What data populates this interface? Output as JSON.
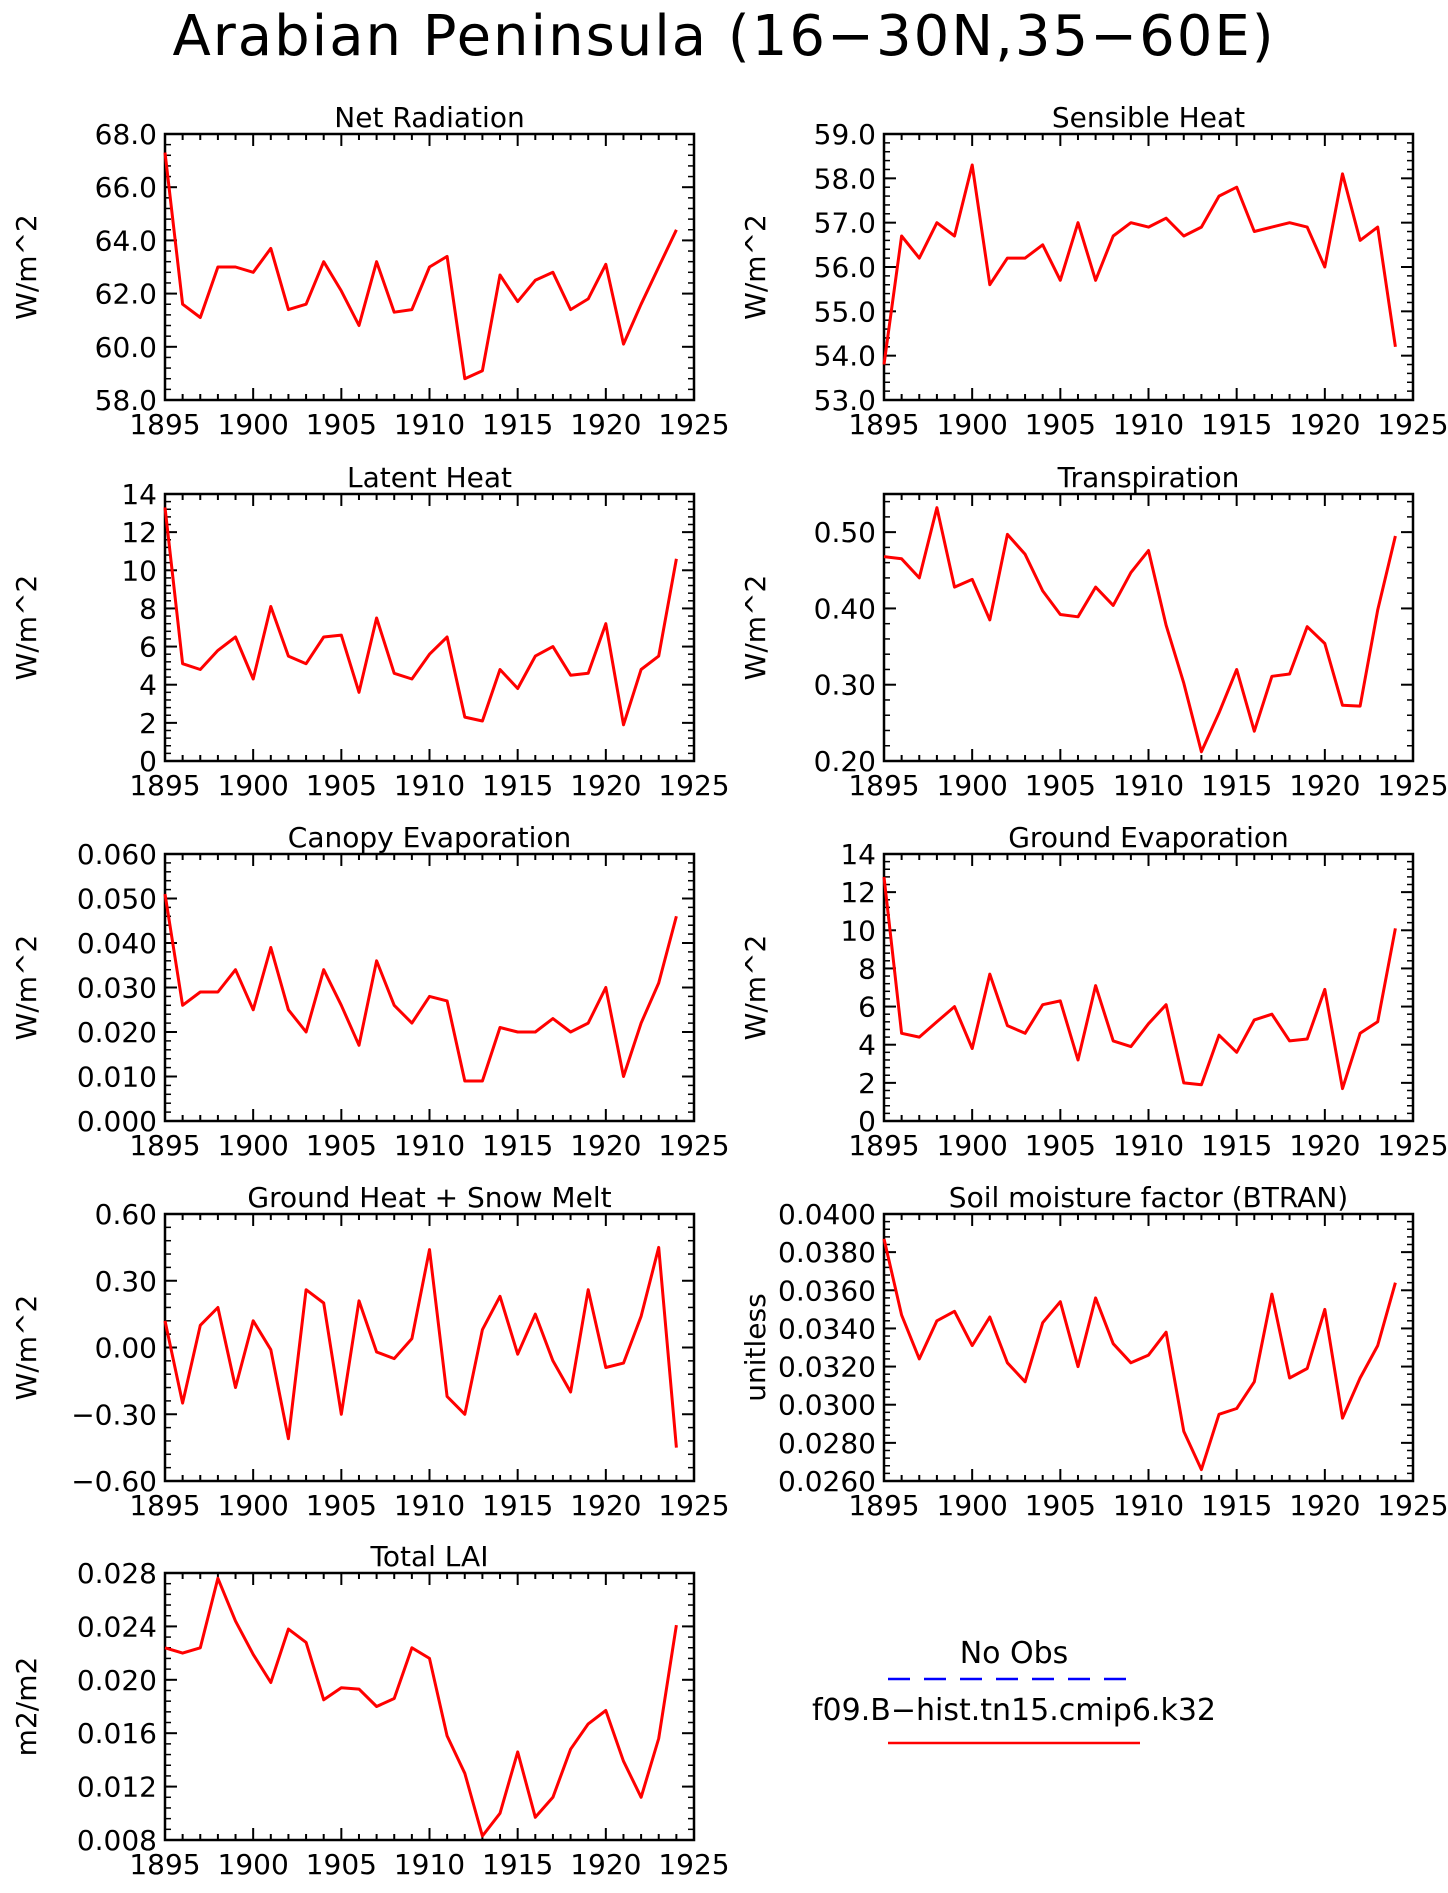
{
  "title": "Arabian Peninsula (16−30N,35−60E)",
  "colors": {
    "model": "#ff0000",
    "obs": "#0000ff",
    "axis": "#000000"
  },
  "legend": {
    "obs_label": "No Obs",
    "model_label": "f09.B−hist.tn15.cmip6.k32"
  },
  "chart_data": [
    {
      "type": "line",
      "title": "Net Radiation",
      "ylabel": "W/m^2",
      "xlabel": "",
      "xlim": [
        1895,
        1925
      ],
      "ylim": [
        58.0,
        68.0
      ],
      "xticks": [
        "1895",
        "1900",
        "1905",
        "1910",
        "1915",
        "1920",
        "1925"
      ],
      "yticks": [
        "58.0",
        "60.0",
        "62.0",
        "64.0",
        "66.0",
        "68.0"
      ],
      "x": [
        1895,
        1896,
        1897,
        1898,
        1899,
        1900,
        1901,
        1902,
        1903,
        1904,
        1905,
        1906,
        1907,
        1908,
        1909,
        1910,
        1911,
        1912,
        1913,
        1914,
        1915,
        1916,
        1917,
        1918,
        1919,
        1920,
        1921,
        1922,
        1923,
        1924
      ],
      "series": [
        {
          "values": [
            67.3,
            61.6,
            61.1,
            63.0,
            63.0,
            62.8,
            63.7,
            61.4,
            61.6,
            63.2,
            62.1,
            60.8,
            63.2,
            61.3,
            61.4,
            63.0,
            63.4,
            58.8,
            59.1,
            62.7,
            61.7,
            62.5,
            62.8,
            61.4,
            61.8,
            63.1,
            60.1,
            61.6,
            63.0,
            64.4
          ]
        }
      ]
    },
    {
      "type": "line",
      "title": "Sensible Heat",
      "ylabel": "W/m^2",
      "xlabel": "",
      "xlim": [
        1895,
        1925
      ],
      "ylim": [
        53.0,
        59.0
      ],
      "xticks": [
        "1895",
        "1900",
        "1905",
        "1910",
        "1915",
        "1920",
        "1925"
      ],
      "yticks": [
        "53.0",
        "54.0",
        "55.0",
        "56.0",
        "57.0",
        "58.0",
        "59.0"
      ],
      "x": [
        1895,
        1896,
        1897,
        1898,
        1899,
        1900,
        1901,
        1902,
        1903,
        1904,
        1905,
        1906,
        1907,
        1908,
        1909,
        1910,
        1911,
        1912,
        1913,
        1914,
        1915,
        1916,
        1917,
        1918,
        1919,
        1920,
        1921,
        1922,
        1923,
        1924
      ],
      "series": [
        {
          "values": [
            53.8,
            56.7,
            56.2,
            57.0,
            56.7,
            58.3,
            55.6,
            56.2,
            56.2,
            56.5,
            55.7,
            57.0,
            55.7,
            56.7,
            57.0,
            56.9,
            57.1,
            56.7,
            56.9,
            57.6,
            57.8,
            56.8,
            56.9,
            57.0,
            56.9,
            56.0,
            58.1,
            56.6,
            56.9,
            54.2
          ]
        }
      ]
    },
    {
      "type": "line",
      "title": "Latent Heat",
      "ylabel": "W/m^2",
      "xlabel": "",
      "xlim": [
        1895,
        1925
      ],
      "ylim": [
        0,
        14
      ],
      "xticks": [
        "1895",
        "1900",
        "1905",
        "1910",
        "1915",
        "1920",
        "1925"
      ],
      "yticks": [
        "0",
        "2",
        "4",
        "6",
        "8",
        "10",
        "12",
        "14"
      ],
      "x": [
        1895,
        1896,
        1897,
        1898,
        1899,
        1900,
        1901,
        1902,
        1903,
        1904,
        1905,
        1906,
        1907,
        1908,
        1909,
        1910,
        1911,
        1912,
        1913,
        1914,
        1915,
        1916,
        1917,
        1918,
        1919,
        1920,
        1921,
        1922,
        1923,
        1924
      ],
      "series": [
        {
          "values": [
            13.3,
            5.1,
            4.8,
            5.8,
            6.5,
            4.3,
            8.1,
            5.5,
            5.1,
            6.5,
            6.6,
            3.6,
            7.5,
            4.6,
            4.3,
            5.6,
            6.5,
            2.3,
            2.1,
            4.8,
            3.8,
            5.5,
            6.0,
            4.5,
            4.6,
            7.2,
            1.9,
            4.8,
            5.5,
            10.6
          ]
        }
      ]
    },
    {
      "type": "line",
      "title": "Transpiration",
      "ylabel": "W/m^2",
      "xlabel": "",
      "xlim": [
        1895,
        1925
      ],
      "ylim": [
        0.2,
        0.55
      ],
      "xticks": [
        "1895",
        "1900",
        "1905",
        "1910",
        "1915",
        "1920",
        "1925"
      ],
      "yticks": [
        "0.20",
        "0.30",
        "0.40",
        "0.50"
      ],
      "x": [
        1895,
        1896,
        1897,
        1898,
        1899,
        1900,
        1901,
        1902,
        1903,
        1904,
        1905,
        1906,
        1907,
        1908,
        1909,
        1910,
        1911,
        1912,
        1913,
        1914,
        1915,
        1916,
        1917,
        1918,
        1919,
        1920,
        1921,
        1922,
        1923,
        1924
      ],
      "series": [
        {
          "values": [
            0.468,
            0.465,
            0.44,
            0.532,
            0.428,
            0.438,
            0.385,
            0.497,
            0.471,
            0.423,
            0.392,
            0.389,
            0.428,
            0.404,
            0.447,
            0.476,
            0.378,
            0.302,
            0.212,
            0.263,
            0.32,
            0.239,
            0.311,
            0.314,
            0.376,
            0.354,
            0.273,
            0.272,
            0.398,
            0.495
          ]
        }
      ]
    },
    {
      "type": "line",
      "title": "Canopy Evaporation",
      "ylabel": "W/m^2",
      "xlabel": "",
      "xlim": [
        1895,
        1925
      ],
      "ylim": [
        0.0,
        0.06
      ],
      "xticks": [
        "1895",
        "1900",
        "1905",
        "1910",
        "1915",
        "1920",
        "1925"
      ],
      "yticks": [
        "0.000",
        "0.010",
        "0.020",
        "0.030",
        "0.040",
        "0.050",
        "0.060"
      ],
      "x": [
        1895,
        1896,
        1897,
        1898,
        1899,
        1900,
        1901,
        1902,
        1903,
        1904,
        1905,
        1906,
        1907,
        1908,
        1909,
        1910,
        1911,
        1912,
        1913,
        1914,
        1915,
        1916,
        1917,
        1918,
        1919,
        1920,
        1921,
        1922,
        1923,
        1924
      ],
      "series": [
        {
          "values": [
            0.051,
            0.026,
            0.029,
            0.029,
            0.034,
            0.025,
            0.039,
            0.025,
            0.02,
            0.034,
            0.026,
            0.017,
            0.036,
            0.026,
            0.022,
            0.028,
            0.027,
            0.009,
            0.009,
            0.021,
            0.02,
            0.02,
            0.023,
            0.02,
            0.022,
            0.03,
            0.01,
            0.022,
            0.031,
            0.046
          ]
        }
      ]
    },
    {
      "type": "line",
      "title": "Ground Evaporation",
      "ylabel": "W/m^2",
      "xlabel": "",
      "xlim": [
        1895,
        1925
      ],
      "ylim": [
        0,
        14
      ],
      "xticks": [
        "1895",
        "1900",
        "1905",
        "1910",
        "1915",
        "1920",
        "1925"
      ],
      "yticks": [
        "0",
        "2",
        "4",
        "6",
        "8",
        "10",
        "12",
        "14"
      ],
      "x": [
        1895,
        1896,
        1897,
        1898,
        1899,
        1900,
        1901,
        1902,
        1903,
        1904,
        1905,
        1906,
        1907,
        1908,
        1909,
        1910,
        1911,
        1912,
        1913,
        1914,
        1915,
        1916,
        1917,
        1918,
        1919,
        1920,
        1921,
        1922,
        1923,
        1924
      ],
      "series": [
        {
          "values": [
            12.8,
            4.6,
            4.4,
            5.2,
            6.0,
            3.8,
            7.7,
            5.0,
            4.6,
            6.1,
            6.3,
            3.2,
            7.1,
            4.2,
            3.9,
            5.1,
            6.1,
            2.0,
            1.9,
            4.5,
            3.6,
            5.3,
            5.6,
            4.2,
            4.3,
            6.9,
            1.7,
            4.6,
            5.2,
            10.1
          ]
        }
      ]
    },
    {
      "type": "line",
      "title": "Ground Heat + Snow Melt",
      "ylabel": "W/m^2",
      "xlabel": "",
      "xlim": [
        1895,
        1925
      ],
      "ylim": [
        -0.6,
        0.6
      ],
      "xticks": [
        "1895",
        "1900",
        "1905",
        "1910",
        "1915",
        "1920",
        "1925"
      ],
      "yticks": [
        "−0.60",
        "−0.30",
        "0.00",
        "0.30",
        "0.60"
      ],
      "x": [
        1895,
        1896,
        1897,
        1898,
        1899,
        1900,
        1901,
        1902,
        1903,
        1904,
        1905,
        1906,
        1907,
        1908,
        1909,
        1910,
        1911,
        1912,
        1913,
        1914,
        1915,
        1916,
        1917,
        1918,
        1919,
        1920,
        1921,
        1922,
        1923,
        1924
      ],
      "series": [
        {
          "values": [
            0.12,
            -0.25,
            0.1,
            0.18,
            -0.18,
            0.12,
            -0.01,
            -0.41,
            0.26,
            0.2,
            -0.3,
            0.21,
            -0.02,
            -0.05,
            0.04,
            0.44,
            -0.22,
            -0.3,
            0.08,
            0.23,
            -0.03,
            0.15,
            -0.06,
            -0.2,
            0.26,
            -0.09,
            -0.07,
            0.14,
            0.45,
            -0.45
          ]
        }
      ]
    },
    {
      "type": "line",
      "title": "Soil moisture factor (BTRAN)",
      "ylabel": "unitless",
      "xlabel": "",
      "xlim": [
        1895,
        1925
      ],
      "ylim": [
        0.026,
        0.04
      ],
      "xticks": [
        "1895",
        "1900",
        "1905",
        "1910",
        "1915",
        "1920",
        "1925"
      ],
      "yticks": [
        "0.0260",
        "0.0280",
        "0.0300",
        "0.0320",
        "0.0340",
        "0.0360",
        "0.0380",
        "0.0400"
      ],
      "x": [
        1895,
        1896,
        1897,
        1898,
        1899,
        1900,
        1901,
        1902,
        1903,
        1904,
        1905,
        1906,
        1907,
        1908,
        1909,
        1910,
        1911,
        1912,
        1913,
        1914,
        1915,
        1916,
        1917,
        1918,
        1919,
        1920,
        1921,
        1922,
        1923,
        1924
      ],
      "series": [
        {
          "values": [
            0.0387,
            0.0347,
            0.0324,
            0.0344,
            0.0349,
            0.0331,
            0.0346,
            0.0322,
            0.0312,
            0.0343,
            0.0354,
            0.032,
            0.0356,
            0.0332,
            0.0322,
            0.0326,
            0.0338,
            0.0286,
            0.0266,
            0.0295,
            0.0298,
            0.0312,
            0.0358,
            0.0314,
            0.0319,
            0.035,
            0.0293,
            0.0314,
            0.0331,
            0.0364
          ]
        }
      ]
    },
    {
      "type": "line",
      "title": "Total LAI",
      "ylabel": "m2/m2",
      "xlabel": "",
      "xlim": [
        1895,
        1925
      ],
      "ylim": [
        0.008,
        0.028
      ],
      "xticks": [
        "1895",
        "1900",
        "1905",
        "1910",
        "1915",
        "1920",
        "1925"
      ],
      "yticks": [
        "0.008",
        "0.012",
        "0.016",
        "0.020",
        "0.024",
        "0.028"
      ],
      "x": [
        1895,
        1896,
        1897,
        1898,
        1899,
        1900,
        1901,
        1902,
        1903,
        1904,
        1905,
        1906,
        1907,
        1908,
        1909,
        1910,
        1911,
        1912,
        1913,
        1914,
        1915,
        1916,
        1917,
        1918,
        1919,
        1920,
        1921,
        1922,
        1923,
        1924
      ],
      "series": [
        {
          "values": [
            0.0224,
            0.022,
            0.0224,
            0.0276,
            0.0244,
            0.0219,
            0.0198,
            0.0238,
            0.0228,
            0.0185,
            0.0194,
            0.0193,
            0.018,
            0.0186,
            0.0224,
            0.0216,
            0.0158,
            0.013,
            0.0083,
            0.01,
            0.0146,
            0.0097,
            0.0112,
            0.0148,
            0.0167,
            0.0177,
            0.0139,
            0.0112,
            0.0156,
            0.0241
          ]
        }
      ]
    }
  ]
}
